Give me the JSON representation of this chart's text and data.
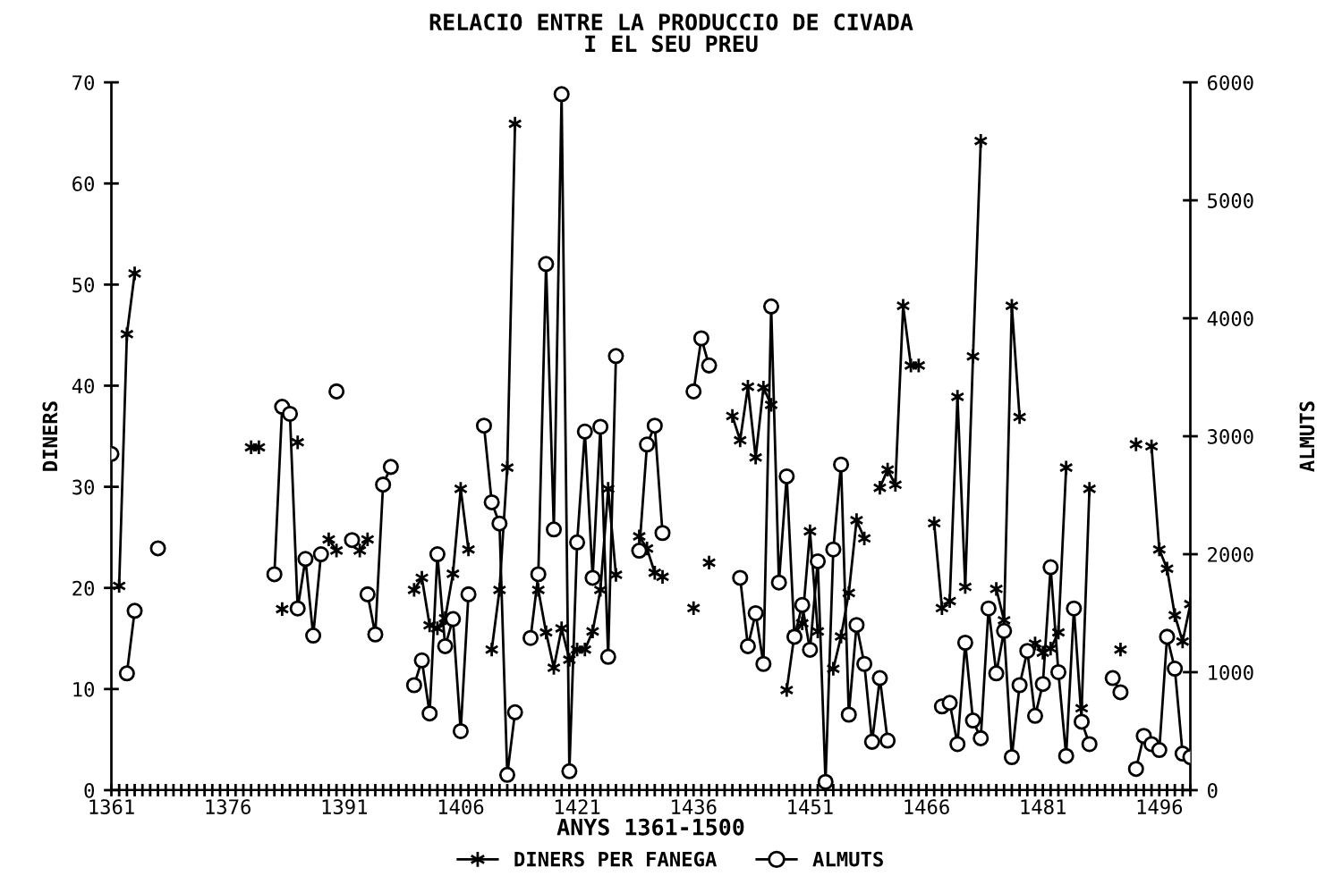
{
  "chart_data": {
    "type": "line",
    "title": "RELACIO ENTRE LA PRODUCCIO DE CIVADA\nI EL SEU PREU",
    "xlabel": "ANYS 1361-1500",
    "ylabel": "DINERS",
    "y2label": "ALMUTS",
    "x": [
      1361,
      1362,
      1363,
      1364,
      1365,
      1366,
      1367,
      1368,
      1369,
      1370,
      1371,
      1372,
      1373,
      1374,
      1375,
      1376,
      1377,
      1378,
      1379,
      1380,
      1381,
      1382,
      1383,
      1384,
      1385,
      1386,
      1387,
      1388,
      1389,
      1390,
      1391,
      1392,
      1393,
      1394,
      1395,
      1396,
      1397,
      1398,
      1399,
      1400,
      1401,
      1402,
      1403,
      1404,
      1405,
      1406,
      1407,
      1408,
      1409,
      1410,
      1411,
      1412,
      1413,
      1414,
      1415,
      1416,
      1417,
      1418,
      1419,
      1420,
      1421,
      1422,
      1423,
      1424,
      1425,
      1426,
      1427,
      1428,
      1429,
      1430,
      1431,
      1432,
      1433,
      1434,
      1435,
      1436,
      1437,
      1438,
      1439,
      1440,
      1441,
      1442,
      1443,
      1444,
      1445,
      1446,
      1447,
      1448,
      1449,
      1450,
      1451,
      1452,
      1453,
      1454,
      1455,
      1456,
      1457,
      1458,
      1459,
      1460,
      1461,
      1462,
      1463,
      1464,
      1465,
      1466,
      1467,
      1468,
      1469,
      1470,
      1471,
      1472,
      1473,
      1474,
      1475,
      1476,
      1477,
      1478,
      1479,
      1480,
      1481,
      1482,
      1483,
      1484,
      1485,
      1486,
      1487,
      1488,
      1489,
      1490,
      1491,
      1492,
      1493,
      1494,
      1495,
      1496,
      1497,
      1498,
      1499,
      1500
    ],
    "series": [
      {
        "name": "DINERS PER FANEGA",
        "color": "#000000",
        "marker": "cross",
        "values": [
          null,
          20.2,
          45.1,
          51.1,
          null,
          null,
          null,
          null,
          null,
          null,
          null,
          null,
          null,
          null,
          null,
          null,
          null,
          null,
          33.9,
          33.9,
          null,
          null,
          17.9,
          null,
          34.4,
          null,
          null,
          null,
          24.8,
          23.7,
          null,
          null,
          23.7,
          24.8,
          null,
          null,
          null,
          null,
          null,
          19.8,
          21.0,
          16.3,
          16.0,
          17.0,
          21.4,
          29.8,
          23.8,
          null,
          null,
          13.9,
          19.8,
          31.9,
          65.9,
          null,
          null,
          19.8,
          15.6,
          12.1,
          16.0,
          12.9,
          13.9,
          13.9,
          15.7,
          19.8,
          29.8,
          21.3,
          null,
          null,
          25.1,
          23.9,
          21.5,
          21.1,
          null,
          null,
          null,
          18.0,
          null,
          22.5,
          null,
          null,
          37.0,
          34.6,
          39.9,
          32.9,
          39.8,
          38.1,
          null,
          9.9,
          15.4,
          16.5,
          25.6,
          15.7,
          null,
          12.0,
          15.2,
          19.5,
          26.7,
          24.9,
          null,
          29.9,
          31.7,
          30.2,
          47.9,
          42.0,
          42.0,
          null,
          26.4,
          18.0,
          18.7,
          38.9,
          20.1,
          42.9,
          64.2,
          null,
          19.9,
          16.8,
          47.9,
          36.9,
          null,
          14.5,
          13.6,
          14.0,
          15.6,
          31.9,
          null,
          8.1,
          29.8,
          null,
          null,
          null,
          13.9,
          null,
          34.2,
          null,
          34.0,
          23.8,
          21.9,
          17.3,
          14.7,
          18.4
        ]
      },
      {
        "name": "ALMUTS",
        "color": "#000000",
        "marker": "circle",
        "axis": "y2",
        "values": [
          2850,
          null,
          990,
          1520,
          null,
          null,
          2050,
          null,
          null,
          null,
          null,
          null,
          null,
          null,
          null,
          null,
          null,
          null,
          null,
          null,
          null,
          1830,
          3250,
          3190,
          1540,
          1960,
          1310,
          2000,
          null,
          3380,
          null,
          2120,
          null,
          1660,
          1320,
          2590,
          2740,
          null,
          null,
          890,
          1100,
          650,
          2000,
          1220,
          1450,
          500,
          1660,
          null,
          3090,
          2440,
          2260,
          130,
          660,
          null,
          1290,
          1830,
          4460,
          2210,
          5900,
          160,
          2100,
          3040,
          1800,
          3080,
          1130,
          3680,
          null,
          null,
          2030,
          2930,
          3090,
          2180,
          null,
          null,
          null,
          3380,
          3830,
          3600,
          null,
          null,
          null,
          1800,
          1220,
          1500,
          1070,
          4100,
          1760,
          2660,
          1300,
          1570,
          1190,
          1940,
          70,
          2040,
          2760,
          640,
          1400,
          1070,
          410,
          950,
          420,
          null,
          null,
          null,
          null,
          null,
          null,
          710,
          740,
          390,
          1250,
          590,
          440,
          1540,
          990,
          1350,
          280,
          890,
          1180,
          630,
          900,
          1890,
          1000,
          290,
          1540,
          580,
          390,
          null,
          null,
          950,
          830,
          null,
          180,
          460,
          390,
          340,
          1300,
          1030,
          310,
          280
        ]
      }
    ],
    "xlim": [
      1361,
      1500
    ],
    "xticks": [
      1361,
      {
        "value": 1362,
        "label": null
      },
      {
        "value": 1363,
        "label": null
      },
      {
        "value": 1364,
        "label": null
      },
      {
        "value": 1365,
        "label": null
      },
      {
        "value": 1366,
        "label": null
      },
      {
        "value": 1367,
        "label": null
      },
      {
        "value": 1368,
        "label": null
      },
      {
        "value": 1369,
        "label": null
      },
      {
        "value": 1370,
        "label": null
      },
      {
        "value": 1371,
        "label": null
      },
      {
        "value": 1372,
        "label": null
      },
      {
        "value": 1373,
        "label": null
      },
      {
        "value": 1374,
        "label": null
      },
      {
        "value": 1375,
        "label": null
      },
      1376,
      {
        "value": 1377,
        "label": null
      },
      {
        "value": 1378,
        "label": null
      },
      {
        "value": 1379,
        "label": null
      },
      {
        "value": 1380,
        "label": null
      },
      {
        "value": 1381,
        "label": null
      },
      {
        "value": 1382,
        "label": null
      },
      {
        "value": 1383,
        "label": null
      },
      {
        "value": 1384,
        "label": null
      },
      {
        "value": 1385,
        "label": null
      },
      {
        "value": 1386,
        "label": null
      },
      {
        "value": 1387,
        "label": null
      },
      {
        "value": 1388,
        "label": null
      },
      {
        "value": 1389,
        "label": null
      },
      {
        "value": 1390,
        "label": null
      },
      1391,
      {
        "value": 1392,
        "label": null
      },
      {
        "value": 1393,
        "label": null
      },
      {
        "value": 1394,
        "label": null
      },
      {
        "value": 1395,
        "label": null
      },
      {
        "value": 1396,
        "label": null
      },
      {
        "value": 1397,
        "label": null
      },
      {
        "value": 1398,
        "label": null
      },
      {
        "value": 1399,
        "label": null
      },
      {
        "value": 1400,
        "label": null
      },
      {
        "value": 1401,
        "label": null
      },
      {
        "value": 1402,
        "label": null
      },
      {
        "value": 1403,
        "label": null
      },
      {
        "value": 1404,
        "label": null
      },
      {
        "value": 1405,
        "label": null
      },
      1406,
      {
        "value": 1407,
        "label": null
      },
      {
        "value": 1408,
        "label": null
      },
      {
        "value": 1409,
        "label": null
      },
      {
        "value": 1410,
        "label": null
      },
      {
        "value": 1411,
        "label": null
      },
      {
        "value": 1412,
        "label": null
      },
      {
        "value": 1413,
        "label": null
      },
      {
        "value": 1414,
        "label": null
      },
      {
        "value": 1415,
        "label": null
      },
      {
        "value": 1416,
        "label": null
      },
      {
        "value": 1417,
        "label": null
      },
      {
        "value": 1418,
        "label": null
      },
      {
        "value": 1419,
        "label": null
      },
      {
        "value": 1420,
        "label": null
      },
      1421,
      {
        "value": 1422,
        "label": null
      },
      {
        "value": 1423,
        "label": null
      },
      {
        "value": 1424,
        "label": null
      },
      {
        "value": 1425,
        "label": null
      },
      {
        "value": 1426,
        "label": null
      },
      {
        "value": 1427,
        "label": null
      },
      {
        "value": 1428,
        "label": null
      },
      {
        "value": 1429,
        "label": null
      },
      {
        "value": 1430,
        "label": null
      },
      {
        "value": 1431,
        "label": null
      },
      {
        "value": 1432,
        "label": null
      },
      {
        "value": 1433,
        "label": null
      },
      {
        "value": 1434,
        "label": null
      },
      {
        "value": 1435,
        "label": null
      },
      1436,
      {
        "value": 1437,
        "label": null
      },
      {
        "value": 1438,
        "label": null
      },
      {
        "value": 1439,
        "label": null
      },
      {
        "value": 1440,
        "label": null
      },
      {
        "value": 1441,
        "label": null
      },
      {
        "value": 1442,
        "label": null
      },
      {
        "value": 1443,
        "label": null
      },
      {
        "value": 1444,
        "label": null
      },
      {
        "value": 1445,
        "label": null
      },
      {
        "value": 1446,
        "label": null
      },
      {
        "value": 1447,
        "label": null
      },
      {
        "value": 1448,
        "label": null
      },
      {
        "value": 1449,
        "label": null
      },
      {
        "value": 1450,
        "label": null
      },
      1451,
      {
        "value": 1452,
        "label": null
      },
      {
        "value": 1453,
        "label": null
      },
      {
        "value": 1454,
        "label": null
      },
      {
        "value": 1455,
        "label": null
      },
      {
        "value": 1456,
        "label": null
      },
      {
        "value": 1457,
        "label": null
      },
      {
        "value": 1458,
        "label": null
      },
      {
        "value": 1459,
        "label": null
      },
      {
        "value": 1460,
        "label": null
      },
      {
        "value": 1461,
        "label": null
      },
      {
        "value": 1462,
        "label": null
      },
      {
        "value": 1463,
        "label": null
      },
      {
        "value": 1464,
        "label": null
      },
      {
        "value": 1465,
        "label": null
      },
      1466,
      {
        "value": 1467,
        "label": null
      },
      {
        "value": 1468,
        "label": null
      },
      {
        "value": 1469,
        "label": null
      },
      {
        "value": 1470,
        "label": null
      },
      {
        "value": 1471,
        "label": null
      },
      {
        "value": 1472,
        "label": null
      },
      {
        "value": 1473,
        "label": null
      },
      {
        "value": 1474,
        "label": null
      },
      {
        "value": 1475,
        "label": null
      },
      {
        "value": 1476,
        "label": null
      },
      {
        "value": 1477,
        "label": null
      },
      {
        "value": 1478,
        "label": null
      },
      {
        "value": 1479,
        "label": null
      },
      {
        "value": 1480,
        "label": null
      },
      1481,
      {
        "value": 1482,
        "label": null
      },
      {
        "value": 1483,
        "label": null
      },
      {
        "value": 1484,
        "label": null
      },
      {
        "value": 1485,
        "label": null
      },
      {
        "value": 1486,
        "label": null
      },
      {
        "value": 1487,
        "label": null
      },
      {
        "value": 1488,
        "label": null
      },
      {
        "value": 1489,
        "label": null
      },
      {
        "value": 1490,
        "label": null
      },
      {
        "value": 1491,
        "label": null
      },
      {
        "value": 1492,
        "label": null
      },
      {
        "value": 1493,
        "label": null
      },
      {
        "value": 1494,
        "label": null
      },
      {
        "value": 1495,
        "label": null
      },
      1496,
      {
        "value": 1497,
        "label": null
      },
      {
        "value": 1498,
        "label": null
      },
      {
        "value": 1499,
        "label": null
      },
      {
        "value": 1500,
        "label": null
      }
    ],
    "ylim": [
      0,
      70
    ],
    "yticks": [
      0,
      10,
      20,
      30,
      40,
      50,
      60,
      70
    ],
    "y2lim": [
      0,
      6000
    ],
    "y2ticks": [
      0,
      1000,
      2000,
      3000,
      4000,
      5000,
      6000
    ],
    "grid": false,
    "legend": "bottom",
    "line_style": "solid"
  }
}
